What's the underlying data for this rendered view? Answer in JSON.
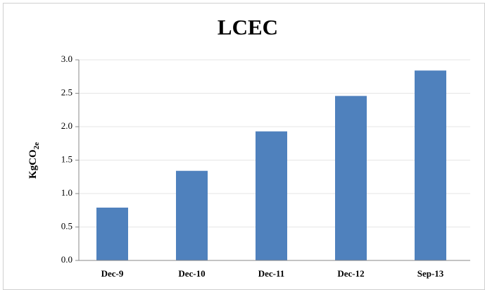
{
  "chart_data": {
    "type": "bar",
    "title": "LCEC",
    "ylabel": {
      "main": "KgCO",
      "sub": "2e"
    },
    "categories": [
      "Dec-9",
      "Dec-10",
      "Dec-11",
      "Dec-12",
      "Sep-13"
    ],
    "values": [
      0.79,
      1.34,
      1.93,
      2.46,
      2.84
    ],
    "color": "#4f81bd",
    "ylim": [
      0,
      3
    ],
    "yticks": [
      {
        "value": 0,
        "label": "0.0"
      },
      0.5,
      {
        "value": 1,
        "label": "1.0"
      },
      1.5,
      {
        "value": 2,
        "label": "2.0"
      },
      2.5,
      {
        "value": 3,
        "label": "3.0"
      }
    ],
    "grid": true
  }
}
